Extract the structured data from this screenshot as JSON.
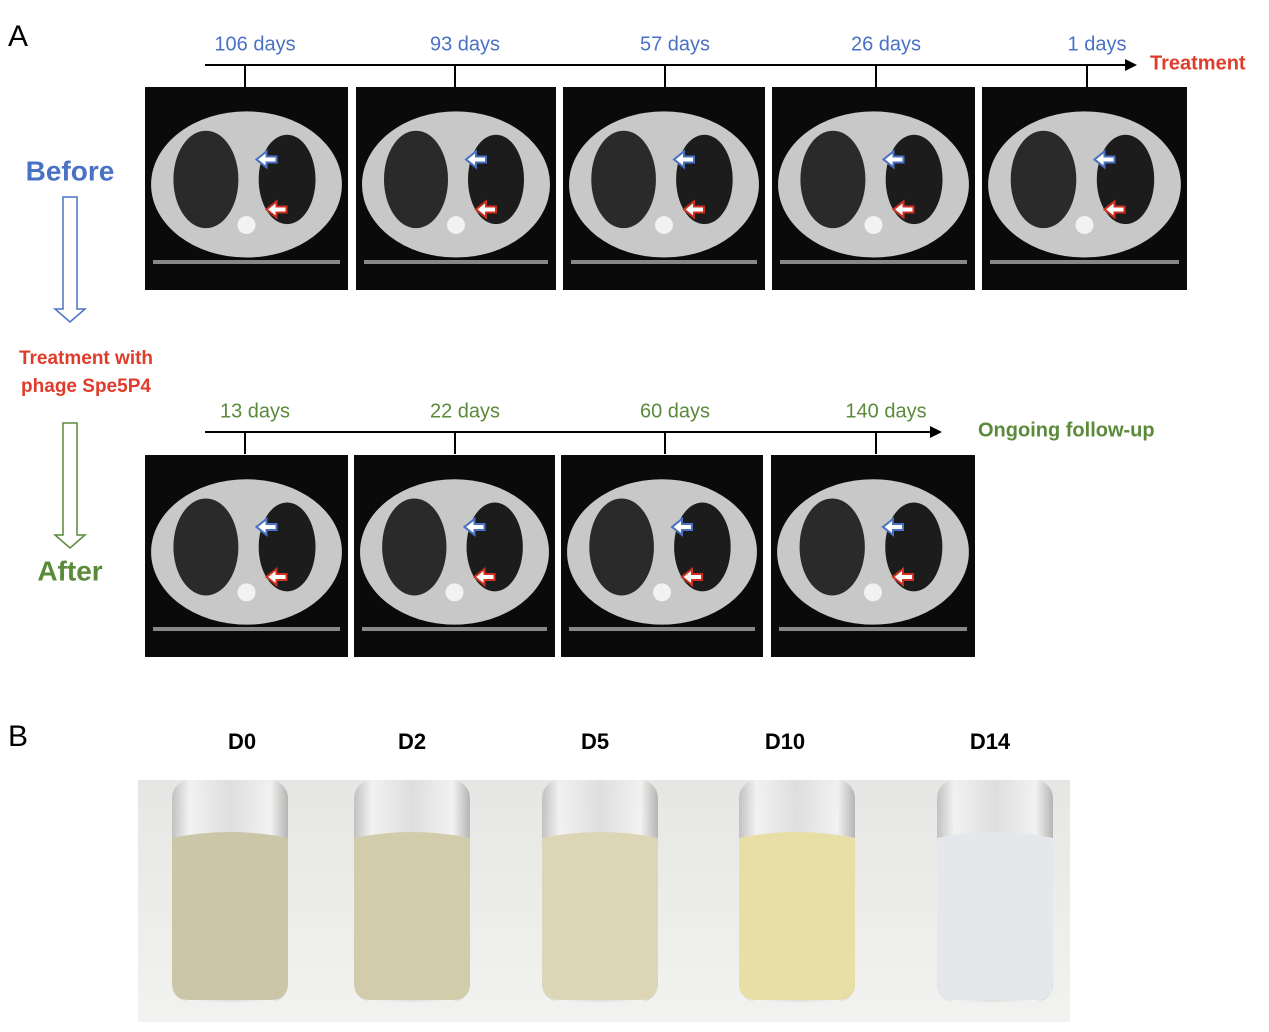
{
  "panel_a": {
    "label": "A",
    "before": {
      "label": "Before",
      "timepoints": [
        "106 days",
        "93 days",
        "57 days",
        "26 days",
        "1 days"
      ],
      "end_label": "Treatment"
    },
    "treatment_label": [
      "Treatment with",
      "phage Spe5P4"
    ],
    "after": {
      "label": "After",
      "timepoints": [
        "13 days",
        "22 days",
        "60 days",
        "140 days"
      ],
      "end_label": "Ongoing follow-up"
    }
  },
  "panel_b": {
    "label": "B",
    "tubes": [
      "D0",
      "D2",
      "D5",
      "D10",
      "D14"
    ]
  }
}
